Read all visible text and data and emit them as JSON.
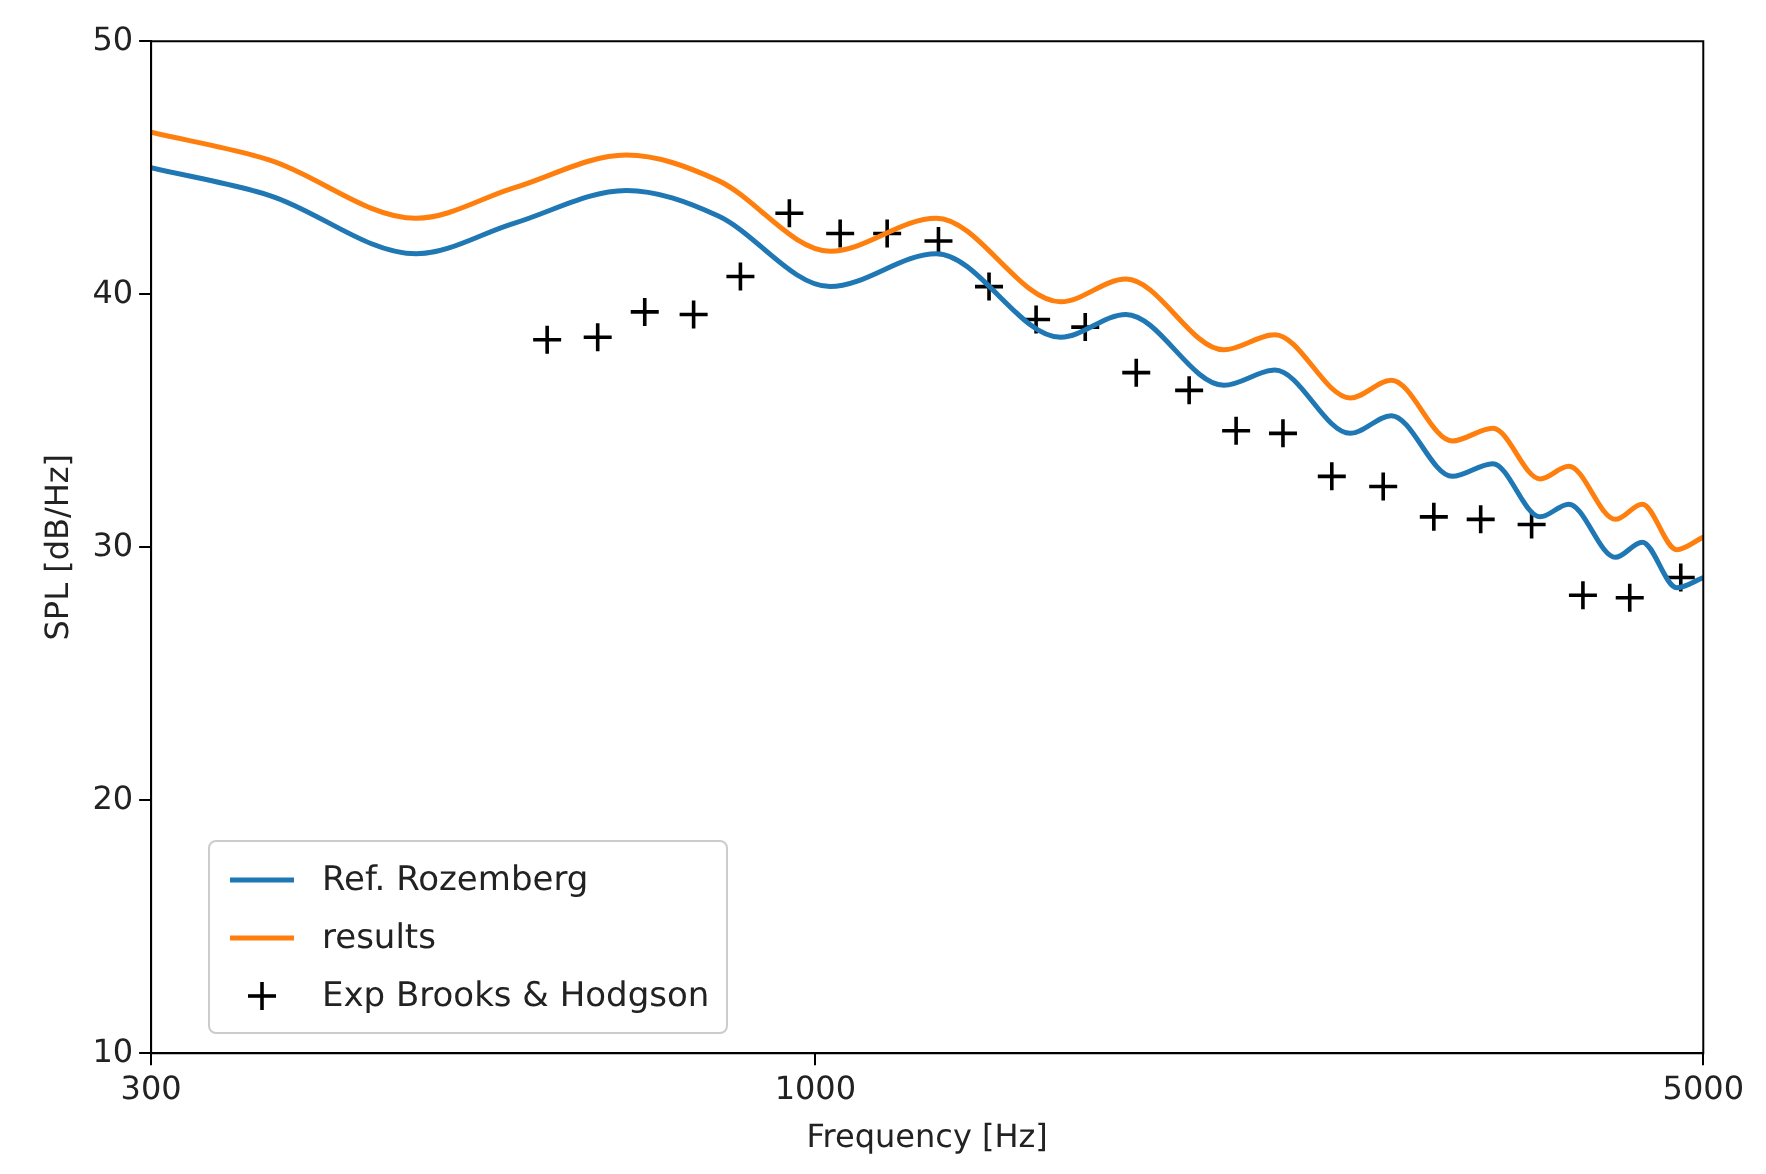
{
  "chart_data": {
    "type": "line",
    "xlabel": "Frequency [Hz]",
    "ylabel": "SPL [dB/Hz]",
    "log": "x",
    "xlim": [
      300,
      5000
    ],
    "xticks": [
      300,
      1000,
      5000
    ],
    "ylim": [
      10,
      50
    ],
    "yticks": [
      10,
      20,
      30,
      40,
      50
    ],
    "grid": false,
    "legend": "bottom left",
    "series": [
      {
        "name": "Ref. Rozemberg",
        "type": "line",
        "color": "#1f77b4",
        "marker": "none",
        "line_style": "solid",
        "x": [
          300,
          372,
          485,
          579,
          710,
          838,
          1027,
          1245,
          1560,
          1756,
          2097,
          2300,
          2637,
          2841,
          3172,
          3414,
          3720,
          3918,
          4264,
          4476,
          4765,
          5000
        ],
        "values": [
          45.0,
          43.9,
          41.6,
          42.8,
          44.1,
          43.1,
          40.3,
          41.6,
          38.3,
          39.2,
          36.4,
          37.0,
          34.5,
          35.2,
          32.8,
          33.3,
          31.2,
          31.7,
          29.6,
          30.2,
          28.4,
          28.8
        ]
      },
      {
        "name": "results",
        "type": "line",
        "color": "#ff7f0e",
        "marker": "none",
        "line_style": "solid",
        "x": [
          300,
          372,
          485,
          579,
          710,
          838,
          1027,
          1245,
          1560,
          1756,
          2097,
          2300,
          2637,
          2841,
          3172,
          3414,
          3720,
          3918,
          4264,
          4476,
          4765,
          5000
        ],
        "values": [
          46.4,
          45.3,
          43.0,
          44.2,
          45.5,
          44.5,
          41.7,
          43.0,
          39.7,
          40.6,
          37.8,
          38.4,
          35.9,
          36.6,
          34.2,
          34.7,
          32.7,
          33.2,
          31.1,
          31.7,
          29.9,
          30.4
        ]
      },
      {
        "name": "Exp Brooks & Hodgson",
        "type": "scatter",
        "color": "#000000",
        "marker": "cross",
        "x": [
          615,
          674,
          734,
          802,
          873,
          954,
          1046,
          1139,
          1250,
          1370,
          1492,
          1631,
          1789,
          1969,
          2144,
          2334,
          2550,
          2799,
          3068,
          3340,
          3663,
          4020,
          4376,
          4800
        ],
        "values": [
          38.2,
          38.3,
          39.3,
          39.2,
          40.7,
          43.2,
          42.4,
          42.4,
          42.1,
          40.3,
          39.0,
          38.7,
          36.9,
          36.2,
          34.6,
          34.5,
          32.8,
          32.4,
          31.2,
          31.1,
          30.9,
          28.1,
          28.0,
          28.8
        ]
      }
    ]
  }
}
